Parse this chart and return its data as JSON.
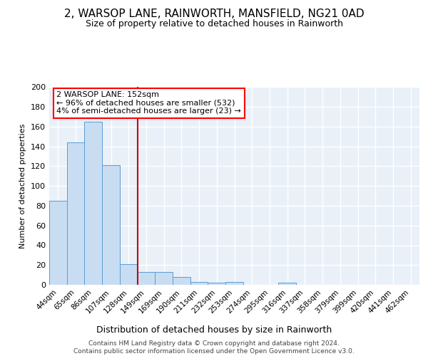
{
  "title1": "2, WARSOP LANE, RAINWORTH, MANSFIELD, NG21 0AD",
  "title2": "Size of property relative to detached houses in Rainworth",
  "xlabel": "Distribution of detached houses by size in Rainworth",
  "ylabel": "Number of detached properties",
  "footnote": "Contains HM Land Registry data © Crown copyright and database right 2024.\nContains public sector information licensed under the Open Government Licence v3.0.",
  "categories": [
    "44sqm",
    "65sqm",
    "86sqm",
    "107sqm",
    "128sqm",
    "149sqm",
    "169sqm",
    "190sqm",
    "211sqm",
    "232sqm",
    "253sqm",
    "274sqm",
    "295sqm",
    "316sqm",
    "337sqm",
    "358sqm",
    "379sqm",
    "399sqm",
    "420sqm",
    "441sqm",
    "462sqm"
  ],
  "bar_heights": [
    85,
    144,
    165,
    121,
    21,
    13,
    13,
    8,
    3,
    2,
    3,
    0,
    0,
    2,
    0,
    0,
    0,
    0,
    0,
    0,
    0
  ],
  "bar_color": "#c9ddf2",
  "bar_edge_color": "#5a9bd5",
  "vline_position": 4.5,
  "vline_color": "#cc0000",
  "annotation_text": "2 WARSOP LANE: 152sqm\n← 96% of detached houses are smaller (532)\n4% of semi-detached houses are larger (23) →",
  "ylim": [
    0,
    200
  ],
  "yticks": [
    0,
    20,
    40,
    60,
    80,
    100,
    120,
    140,
    160,
    180,
    200
  ],
  "plot_bg_color": "#eaf0f8",
  "grid_color": "#ffffff",
  "title1_fontsize": 11,
  "title2_fontsize": 9,
  "xlabel_fontsize": 9,
  "ylabel_fontsize": 8,
  "tick_fontsize": 8,
  "annot_fontsize": 8,
  "footnote_fontsize": 6.5
}
